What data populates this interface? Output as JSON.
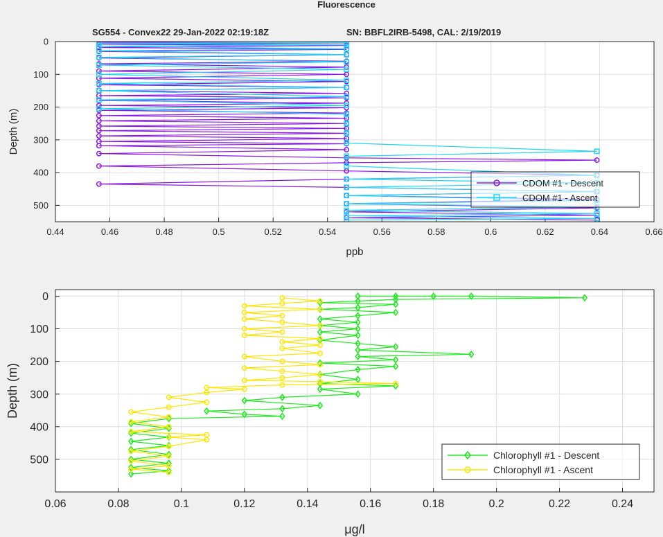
{
  "figure": {
    "title": "Fluorescence",
    "subtitle_left": "SG554 - Convex22 29-Jan-2022 02:19:18Z",
    "subtitle_right": "SN: BBFL2IRB-5498, CAL: 2/19/2019"
  },
  "chart_data": [
    {
      "type": "line",
      "xlabel": "ppb",
      "ylabel": "Depth (m)",
      "xlim": [
        0.44,
        0.66
      ],
      "ylim": [
        0,
        550
      ],
      "y_reversed": true,
      "xticks": [
        "0.44",
        "0.46",
        "0.48",
        "0.5",
        "0.52",
        "0.54",
        "0.56",
        "0.58",
        "0.6",
        "0.62",
        "0.64",
        "0.66"
      ],
      "yticks": [
        "0",
        "100",
        "200",
        "300",
        "400",
        "500"
      ],
      "grid": true,
      "legend_position": "bottom-right",
      "series": [
        {
          "name": "CDOM #1 - Descent",
          "color": "#8a17e6",
          "marker": "circle",
          "points": [
            [
              0.456,
              2
            ],
            [
              0.547,
              4
            ],
            [
              0.456,
              8
            ],
            [
              0.547,
              12
            ],
            [
              0.456,
              18
            ],
            [
              0.547,
              24
            ],
            [
              0.456,
              30
            ],
            [
              0.547,
              40
            ],
            [
              0.456,
              50
            ],
            [
              0.547,
              60
            ],
            [
              0.456,
              68
            ],
            [
              0.547,
              78
            ],
            [
              0.456,
              90
            ],
            [
              0.547,
              100
            ],
            [
              0.456,
              112
            ],
            [
              0.547,
              122
            ],
            [
              0.456,
              132
            ],
            [
              0.547,
              140
            ],
            [
              0.456,
              150
            ],
            [
              0.547,
              158
            ],
            [
              0.456,
              165
            ],
            [
              0.547,
              172
            ],
            [
              0.456,
              180
            ],
            [
              0.547,
              188
            ],
            [
              0.456,
              195
            ],
            [
              0.547,
              202
            ],
            [
              0.456,
              210
            ],
            [
              0.547,
              218
            ],
            [
              0.456,
              226
            ],
            [
              0.547,
              234
            ],
            [
              0.456,
              242
            ],
            [
              0.547,
              250
            ],
            [
              0.456,
              258
            ],
            [
              0.547,
              265
            ],
            [
              0.456,
              272
            ],
            [
              0.547,
              280
            ],
            [
              0.456,
              288
            ],
            [
              0.547,
              296
            ],
            [
              0.456,
              305
            ],
            [
              0.547,
              312
            ],
            [
              0.456,
              318
            ],
            [
              0.547,
              330
            ],
            [
              0.456,
              342
            ],
            [
              0.547,
              355
            ],
            [
              0.639,
              362
            ],
            [
              0.547,
              370
            ],
            [
              0.456,
              380
            ],
            [
              0.547,
              395
            ],
            [
              0.639,
              408
            ],
            [
              0.547,
              420
            ],
            [
              0.456,
              435
            ],
            [
              0.547,
              445
            ],
            [
              0.639,
              458
            ],
            [
              0.547,
              470
            ],
            [
              0.639,
              482
            ],
            [
              0.547,
              495
            ],
            [
              0.639,
              508
            ],
            [
              0.547,
              520
            ],
            [
              0.639,
              530
            ],
            [
              0.547,
              538
            ],
            [
              0.639,
              545
            ]
          ]
        },
        {
          "name": "CDOM #1 - Ascent",
          "color": "#1fd5f5",
          "marker": "square",
          "points": [
            [
              0.547,
              545
            ],
            [
              0.639,
              540
            ],
            [
              0.547,
              532
            ],
            [
              0.639,
              525
            ],
            [
              0.547,
              515
            ],
            [
              0.639,
              505
            ],
            [
              0.547,
              495
            ],
            [
              0.639,
              485
            ],
            [
              0.547,
              470
            ],
            [
              0.639,
              458
            ],
            [
              0.547,
              445
            ],
            [
              0.639,
              432
            ],
            [
              0.547,
              420
            ],
            [
              0.639,
              408
            ],
            [
              0.547,
              380
            ],
            [
              0.547,
              350
            ],
            [
              0.639,
              335
            ],
            [
              0.547,
              310
            ],
            [
              0.547,
              280
            ],
            [
              0.547,
              250
            ],
            [
              0.547,
              222
            ],
            [
              0.456,
              205
            ],
            [
              0.547,
              195
            ],
            [
              0.456,
              178
            ],
            [
              0.547,
              168
            ],
            [
              0.456,
              150
            ],
            [
              0.547,
              140
            ],
            [
              0.456,
              128
            ],
            [
              0.547,
              118
            ],
            [
              0.456,
              100
            ],
            [
              0.547,
              85
            ],
            [
              0.456,
              72
            ],
            [
              0.547,
              62
            ],
            [
              0.456,
              48
            ],
            [
              0.547,
              40
            ],
            [
              0.456,
              28
            ],
            [
              0.547,
              22
            ],
            [
              0.456,
              14
            ],
            [
              0.547,
              10
            ],
            [
              0.456,
              5
            ],
            [
              0.547,
              3
            ]
          ]
        }
      ]
    },
    {
      "type": "line",
      "xlabel": "μg/l",
      "ylabel": "Depth (m)",
      "xlim": [
        0.06,
        0.25
      ],
      "ylim": [
        -20,
        600
      ],
      "y_reversed": true,
      "xticks": [
        "0.06",
        "0.08",
        "0.1",
        "0.12",
        "0.14",
        "0.16",
        "0.18",
        "0.2",
        "0.22",
        "0.24"
      ],
      "yticks": [
        "0",
        "100",
        "200",
        "300",
        "400",
        "500"
      ],
      "grid": true,
      "legend_position": "bottom-right",
      "series": [
        {
          "name": "Chlorophyll #1 - Descent",
          "color": "#1bea1b",
          "marker": "diamond",
          "points": [
            [
              0.156,
              0
            ],
            [
              0.168,
              0
            ],
            [
              0.18,
              0
            ],
            [
              0.192,
              0
            ],
            [
              0.228,
              5
            ],
            [
              0.168,
              10
            ],
            [
              0.156,
              15
            ],
            [
              0.144,
              20
            ],
            [
              0.168,
              25
            ],
            [
              0.156,
              35
            ],
            [
              0.144,
              40
            ],
            [
              0.168,
              50
            ],
            [
              0.156,
              60
            ],
            [
              0.144,
              70
            ],
            [
              0.156,
              80
            ],
            [
              0.144,
              90
            ],
            [
              0.156,
              100
            ],
            [
              0.144,
              110
            ],
            [
              0.156,
              120
            ],
            [
              0.144,
              135
            ],
            [
              0.156,
              145
            ],
            [
              0.168,
              155
            ],
            [
              0.156,
              165
            ],
            [
              0.192,
              178
            ],
            [
              0.156,
              185
            ],
            [
              0.168,
              195
            ],
            [
              0.144,
              205
            ],
            [
              0.168,
              215
            ],
            [
              0.156,
              225
            ],
            [
              0.144,
              240
            ],
            [
              0.156,
              255
            ],
            [
              0.144,
              268
            ],
            [
              0.168,
              275
            ],
            [
              0.144,
              285
            ],
            [
              0.156,
              300
            ],
            [
              0.132,
              310
            ],
            [
              0.12,
              320
            ],
            [
              0.144,
              335
            ],
            [
              0.132,
              345
            ],
            [
              0.108,
              352
            ],
            [
              0.12,
              362
            ],
            [
              0.132,
              368
            ],
            [
              0.096,
              375
            ],
            [
              0.084,
              390
            ],
            [
              0.096,
              405
            ],
            [
              0.084,
              420
            ],
            [
              0.096,
              432
            ],
            [
              0.084,
              445
            ],
            [
              0.096,
              458
            ],
            [
              0.084,
              470
            ],
            [
              0.096,
              485
            ],
            [
              0.084,
              500
            ],
            [
              0.096,
              512
            ],
            [
              0.084,
              525
            ],
            [
              0.096,
              535
            ],
            [
              0.084,
              545
            ]
          ]
        },
        {
          "name": "Chlorophyll #1 - Ascent",
          "color": "#ffe600",
          "marker": "circle",
          "points": [
            [
              0.096,
              540
            ],
            [
              0.084,
              530
            ],
            [
              0.096,
              520
            ],
            [
              0.084,
              505
            ],
            [
              0.096,
              490
            ],
            [
              0.084,
              475
            ],
            [
              0.096,
              460
            ],
            [
              0.108,
              440
            ],
            [
              0.096,
              432
            ],
            [
              0.108,
              425
            ],
            [
              0.084,
              415
            ],
            [
              0.096,
              400
            ],
            [
              0.084,
              385
            ],
            [
              0.096,
              370
            ],
            [
              0.084,
              355
            ],
            [
              0.096,
              340
            ],
            [
              0.108,
              325
            ],
            [
              0.096,
              310
            ],
            [
              0.108,
              295
            ],
            [
              0.12,
              285
            ],
            [
              0.108,
              280
            ],
            [
              0.132,
              272
            ],
            [
              0.168,
              268
            ],
            [
              0.144,
              262
            ],
            [
              0.12,
              258
            ],
            [
              0.132,
              250
            ],
            [
              0.144,
              240
            ],
            [
              0.132,
              230
            ],
            [
              0.12,
              220
            ],
            [
              0.144,
              210
            ],
            [
              0.132,
              200
            ],
            [
              0.12,
              185
            ],
            [
              0.144,
              175
            ],
            [
              0.132,
              160
            ],
            [
              0.144,
              150
            ],
            [
              0.132,
              140
            ],
            [
              0.144,
              130
            ],
            [
              0.12,
              120
            ],
            [
              0.132,
              110
            ],
            [
              0.12,
              100
            ],
            [
              0.144,
              90
            ],
            [
              0.132,
              80
            ],
            [
              0.12,
              70
            ],
            [
              0.132,
              60
            ],
            [
              0.12,
              50
            ],
            [
              0.144,
              40
            ],
            [
              0.12,
              30
            ],
            [
              0.132,
              22
            ],
            [
              0.144,
              15
            ],
            [
              0.132,
              5
            ]
          ]
        }
      ]
    }
  ]
}
